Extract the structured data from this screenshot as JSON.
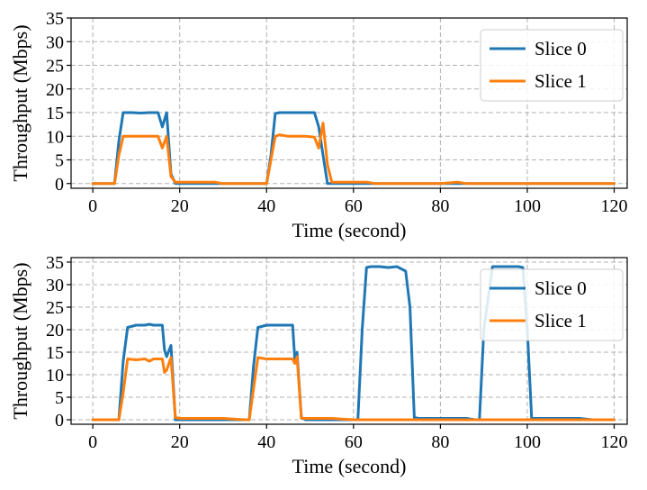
{
  "chart_data": [
    {
      "type": "line",
      "xlabel": "Time (second)",
      "ylabel": "Throughput (Mbps)",
      "xlim": [
        -5,
        123
      ],
      "ylim": [
        -1,
        35
      ],
      "xticks": [
        0,
        20,
        40,
        60,
        80,
        100,
        120
      ],
      "yticks": [
        0,
        5,
        10,
        15,
        20,
        25,
        30,
        35
      ],
      "grid": true,
      "legend_position": "top-right",
      "series": [
        {
          "name": "Slice 0",
          "color": "#1f77b4",
          "x": [
            0,
            5,
            6,
            7,
            9,
            11,
            13,
            15,
            16,
            17,
            18,
            19,
            20,
            25,
            30,
            35,
            40,
            41,
            42,
            43,
            45,
            47,
            49,
            51,
            52,
            53,
            54,
            55,
            60,
            65,
            80,
            100,
            120
          ],
          "y": [
            0,
            0,
            9,
            15,
            15,
            14.9,
            15,
            15,
            12,
            15,
            2,
            0,
            0,
            0,
            0,
            0,
            0,
            6,
            14.8,
            15,
            15,
            15,
            15,
            15,
            12,
            6,
            0,
            0,
            0,
            0,
            0,
            0,
            0
          ]
        },
        {
          "name": "Slice 1",
          "color": "#ff7f0e",
          "x": [
            0,
            5,
            6,
            7,
            9,
            11,
            13,
            15,
            16,
            17,
            18,
            19,
            20,
            25,
            28,
            30,
            35,
            40,
            41,
            42,
            43,
            45,
            47,
            49,
            51,
            52,
            53,
            54,
            55,
            60,
            63,
            65,
            80,
            84,
            86,
            100,
            120
          ],
          "y": [
            0,
            0,
            6,
            10,
            10,
            10,
            10,
            10,
            7.5,
            10,
            1.5,
            0.3,
            0.3,
            0.3,
            0.3,
            0,
            0,
            0,
            5,
            10,
            10.3,
            10,
            10,
            10,
            9.8,
            7.5,
            12.8,
            4,
            0.3,
            0.3,
            0.3,
            0,
            0,
            0.3,
            0,
            0,
            0
          ]
        }
      ]
    },
    {
      "type": "line",
      "xlabel": "Time (second)",
      "ylabel": "Throughput (Mbps)",
      "xlim": [
        -5,
        123
      ],
      "ylim": [
        -1,
        36
      ],
      "xticks": [
        0,
        20,
        40,
        60,
        80,
        100,
        120
      ],
      "yticks": [
        0,
        5,
        10,
        15,
        20,
        25,
        30,
        35
      ],
      "grid": true,
      "legend_position": "top-right",
      "series": [
        {
          "name": "Slice 0",
          "color": "#1f77b4",
          "x": [
            0,
            6,
            7,
            8,
            10,
            12,
            13,
            14,
            16,
            16.5,
            17,
            18,
            19,
            20,
            30,
            36,
            37,
            38,
            40,
            42,
            44,
            46,
            46.5,
            47,
            48,
            49,
            55,
            61,
            62,
            63,
            64,
            66,
            68,
            70,
            72,
            73,
            74,
            75,
            80,
            86,
            88,
            89,
            90,
            92,
            94,
            96,
            98,
            99,
            100,
            101,
            102,
            110,
            112,
            115,
            120
          ],
          "y": [
            0,
            0,
            13,
            20.5,
            21,
            21,
            21.2,
            21,
            21,
            15.5,
            14,
            16.5,
            0,
            0,
            0,
            0,
            12,
            20.5,
            21,
            21,
            21,
            21,
            13.5,
            15,
            0.5,
            0,
            0,
            0,
            20,
            33.8,
            34,
            34,
            33.8,
            34,
            33,
            25,
            0.5,
            0.3,
            0.3,
            0.3,
            0,
            0,
            20,
            34,
            34,
            34,
            34,
            33.8,
            20,
            0.3,
            0.3,
            0.3,
            0.3,
            0,
            0
          ]
        },
        {
          "name": "Slice 1",
          "color": "#ff7f0e",
          "x": [
            0,
            6,
            7,
            8,
            10,
            12,
            13,
            14,
            16,
            16.5,
            17,
            18,
            19,
            20,
            30,
            35,
            36,
            37,
            38,
            40,
            42,
            44,
            46,
            46.5,
            47,
            48,
            49,
            55,
            60,
            80,
            100,
            120
          ],
          "y": [
            0,
            0,
            6,
            13.5,
            13.3,
            13.5,
            13,
            13.5,
            13.5,
            10.5,
            11,
            13.8,
            0.5,
            0.3,
            0.3,
            0,
            0,
            7,
            13.8,
            13.5,
            13.5,
            13.5,
            13.5,
            12.5,
            14,
            0.3,
            0.3,
            0.3,
            0,
            0,
            0,
            0
          ]
        }
      ]
    }
  ]
}
